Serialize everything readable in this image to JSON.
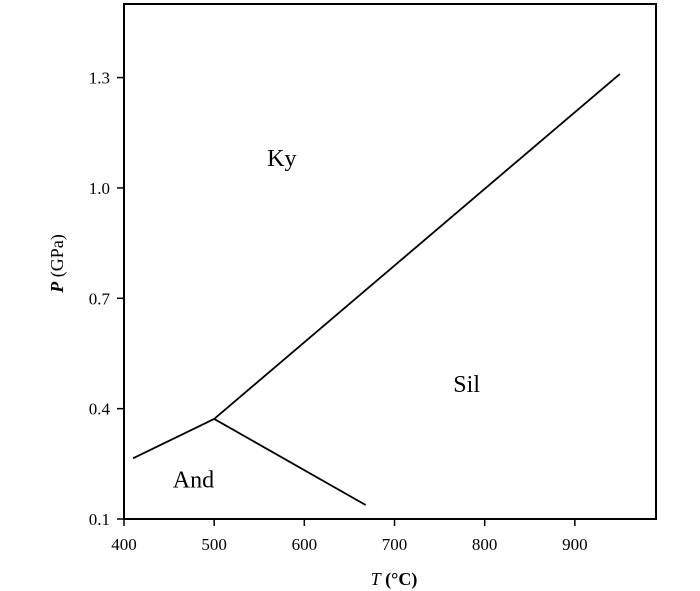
{
  "chart_data": {
    "type": "line",
    "xlabel": {
      "italic": "T",
      "rest": " (°C)"
    },
    "ylabel": {
      "italic": "P",
      "rest": " (GPa)"
    },
    "xlim": [
      400,
      990
    ],
    "ylim": [
      0.1,
      1.5
    ],
    "xticks": [
      400,
      500,
      600,
      700,
      800,
      900
    ],
    "xtick_labels": [
      "400",
      "500",
      "600",
      "700",
      "800",
      "900"
    ],
    "yticks": [
      0.1,
      0.4,
      0.7,
      1.0,
      1.3
    ],
    "ytick_labels": [
      "0.1",
      "0.4",
      "0.7",
      "1.0",
      "1.3"
    ],
    "grid": false,
    "series": [
      {
        "x": [
          410,
          500
        ],
        "y": [
          0.265,
          0.372
        ]
      },
      {
        "x": [
          500,
          950
        ],
        "y": [
          0.372,
          1.31
        ]
      },
      {
        "x": [
          500,
          668
        ],
        "y": [
          0.372,
          0.138
        ]
      }
    ],
    "region_labels": [
      {
        "text": "Ky",
        "x": 575,
        "y": 1.06
      },
      {
        "text": "Sil",
        "x": 780,
        "y": 0.445
      },
      {
        "text": "And",
        "x": 477,
        "y": 0.185
      }
    ]
  }
}
